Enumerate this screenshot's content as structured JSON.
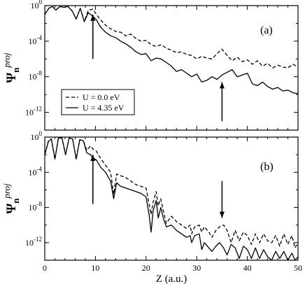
{
  "chart_data": [
    {
      "type": "line",
      "panel_label": "(a)",
      "ylabel": "Ψ",
      "ylabel_sub": "n",
      "ylabel_sup": "proj",
      "xlabel": "",
      "xlim": [
        0,
        50
      ],
      "ylog": true,
      "ylim_log10": [
        -14,
        0
      ],
      "yticks": [
        {
          "v": 0,
          "base": "10",
          "exp": "0"
        },
        {
          "v": -4,
          "base": "10",
          "exp": "-4"
        },
        {
          "v": -8,
          "base": "10",
          "exp": "-8"
        },
        {
          "v": -12,
          "base": "10",
          "exp": "-12"
        }
      ],
      "xticks": [
        0,
        10,
        20,
        30,
        40,
        50
      ],
      "xtick_labels_shown": false,
      "grid": false,
      "legend_position": "lower-left",
      "series": [
        {
          "name": "U = 0.0 eV",
          "style": "dashed",
          "x": [
            0,
            0.8,
            1.5,
            2.2,
            3,
            3.8,
            4.6,
            5.4,
            6.2,
            7.0,
            7.8,
            8.6,
            9.5,
            10.2,
            11,
            12,
            13,
            14,
            15,
            16,
            17,
            18,
            19,
            20,
            21,
            22,
            23,
            24,
            25,
            26,
            27,
            28,
            29,
            30,
            31,
            32,
            33,
            34,
            35,
            36,
            37,
            38,
            39,
            40,
            41,
            42,
            43,
            44,
            45,
            46,
            47,
            48,
            49,
            50
          ],
          "log10": [
            -1.0,
            -0.3,
            -0.1,
            -0.5,
            -0.1,
            -0.2,
            -0.1,
            -0.6,
            -1.5,
            -0.3,
            -1.8,
            -0.5,
            -0.4,
            -1.0,
            -1.6,
            -2.2,
            -2.6,
            -2.9,
            -3.0,
            -3.4,
            -3.2,
            -3.7,
            -4.0,
            -3.9,
            -4.4,
            -4.6,
            -4.4,
            -4.8,
            -5.0,
            -5.3,
            -5.2,
            -5.5,
            -5.6,
            -6.0,
            -5.7,
            -5.9,
            -6.0,
            -5.4,
            -4.9,
            -5.6,
            -6.2,
            -5.8,
            -6.3,
            -6.1,
            -6.6,
            -6.2,
            -6.8,
            -6.5,
            -7.0,
            -6.7,
            -6.9,
            -7.0,
            -6.6,
            -6.9
          ]
        },
        {
          "name": "U = 4.35 eV",
          "style": "solid",
          "x": [
            0,
            0.8,
            1.5,
            2.2,
            3,
            3.8,
            4.6,
            5.4,
            6.2,
            7.0,
            7.8,
            8.6,
            9.5,
            10.2,
            11,
            12,
            13,
            14,
            15,
            16,
            17,
            18,
            19,
            20,
            21,
            22,
            23,
            24,
            25,
            26,
            27,
            28,
            29,
            30,
            31,
            32,
            33,
            34,
            35,
            36,
            37,
            38,
            39,
            40,
            41,
            42,
            43,
            44,
            45,
            46,
            47,
            48,
            49,
            50
          ],
          "log10": [
            -1.0,
            -0.3,
            -0.1,
            -0.5,
            -0.1,
            -0.2,
            -0.1,
            -0.6,
            -1.5,
            -0.3,
            -1.8,
            -0.8,
            -1.2,
            -1.6,
            -2.4,
            -3.0,
            -3.4,
            -3.6,
            -4.0,
            -4.3,
            -4.7,
            -5.2,
            -5.5,
            -5.4,
            -6.2,
            -5.9,
            -6.0,
            -6.4,
            -6.8,
            -7.4,
            -7.2,
            -7.6,
            -8.0,
            -7.7,
            -8.6,
            -8.4,
            -8.0,
            -8.3,
            -7.8,
            -7.5,
            -7.2,
            -8.0,
            -7.8,
            -7.6,
            -8.8,
            -9.0,
            -8.6,
            -9.1,
            -9.4,
            -9.2,
            -9.6,
            -9.5,
            -9.8,
            -9.9
          ]
        }
      ],
      "annotations": [
        {
          "type": "arrow-up",
          "x": 9.5,
          "tip_log10": -1.0,
          "tail_log10": -6.0
        },
        {
          "type": "arrow-up",
          "x": 35,
          "tip_log10": -8.6,
          "tail_log10": -13.0
        }
      ]
    },
    {
      "type": "line",
      "panel_label": "(b)",
      "ylabel": "Ψ",
      "ylabel_sub": "n",
      "ylabel_sup": "proj",
      "xlabel": "Z (a.u.)",
      "xlim": [
        0,
        50
      ],
      "ylog": true,
      "ylim_log10": [
        -14,
        0
      ],
      "yticks": [
        {
          "v": 0,
          "base": "10",
          "exp": "0"
        },
        {
          "v": -4,
          "base": "10",
          "exp": "-4"
        },
        {
          "v": -8,
          "base": "10",
          "exp": "-8"
        },
        {
          "v": -12,
          "base": "10",
          "exp": "-12"
        }
      ],
      "xticks": [
        0,
        10,
        20,
        30,
        40,
        50
      ],
      "xtick_labels_shown": true,
      "grid": false,
      "series": [
        {
          "name": "U = 0.0 eV",
          "style": "dashed",
          "x": [
            0,
            0.7,
            1.3,
            2.0,
            2.7,
            3.4,
            4.1,
            4.8,
            5.5,
            6.2,
            6.9,
            7.6,
            8.3,
            9.0,
            9.6,
            10.2,
            11,
            12,
            13,
            13.6,
            14.2,
            15,
            16,
            17,
            18,
            19,
            20,
            20.6,
            21,
            21.4,
            22,
            22.4,
            22.9,
            23.5,
            24,
            25,
            26,
            27,
            28,
            28.7,
            29,
            29.6,
            30.5,
            31,
            31.5,
            32.4,
            33,
            33.8,
            34.5,
            35.3,
            36,
            36.8,
            37.6,
            38.4,
            39.2,
            40,
            40.8,
            41.6,
            42.4,
            43.2,
            44,
            44.8,
            45.6,
            46.4,
            47.2,
            48,
            48.8,
            49.4,
            50
          ],
          "log10": [
            -2.0,
            -0.5,
            -0.2,
            -2.5,
            -0.1,
            -0.1,
            -2.0,
            -0.1,
            -0.2,
            -2.5,
            -0.3,
            -0.4,
            -1.5,
            -1.0,
            -1.4,
            -1.6,
            -2.4,
            -3.2,
            -4.0,
            -6.5,
            -4.2,
            -4.4,
            -4.6,
            -5.0,
            -5.4,
            -5.6,
            -5.8,
            -7.6,
            -8.8,
            -7.4,
            -6.2,
            -7.8,
            -7.0,
            -8.6,
            -9.8,
            -9.0,
            -9.6,
            -10.0,
            -10.4,
            -10.0,
            -11.0,
            -10.2,
            -10.0,
            -10.8,
            -10.2,
            -10.8,
            -11.4,
            -10.6,
            -10.2,
            -10.0,
            -10.6,
            -12.0,
            -10.6,
            -11.8,
            -10.8,
            -11.2,
            -12.2,
            -11.0,
            -12.0,
            -11.0,
            -11.8,
            -12.0,
            -11.2,
            -12.4,
            -11.0,
            -12.2,
            -11.2,
            -12.6,
            -12.0
          ]
        },
        {
          "name": "U = 4.35 eV",
          "style": "solid",
          "x": [
            0,
            0.7,
            1.3,
            2.0,
            2.7,
            3.4,
            4.1,
            4.8,
            5.5,
            6.2,
            6.9,
            7.6,
            8.3,
            9.0,
            9.6,
            10.2,
            11,
            12,
            13,
            13.6,
            14.2,
            15,
            16,
            17,
            18,
            19,
            20,
            20.6,
            21,
            21.4,
            22,
            22.4,
            22.9,
            23.5,
            24,
            25,
            26,
            27,
            28,
            28.7,
            29,
            29.6,
            30.5,
            31,
            31.5,
            32.4,
            33,
            33.8,
            34.5,
            35.3,
            36,
            36.8,
            37.6,
            38.4,
            39.2,
            40,
            40.8,
            41.6,
            42.4,
            43.2,
            44,
            44.8,
            45.6,
            46.4,
            47.2,
            48,
            48.8,
            49.4,
            50
          ],
          "log10": [
            -2.0,
            -0.5,
            -0.2,
            -2.5,
            -0.1,
            -0.1,
            -2.0,
            -0.1,
            -0.2,
            -2.5,
            -0.3,
            -0.4,
            -1.8,
            -2.0,
            -2.4,
            -2.6,
            -3.4,
            -4.0,
            -5.0,
            -7.0,
            -5.2,
            -5.6,
            -5.8,
            -6.0,
            -6.2,
            -6.4,
            -6.8,
            -8.8,
            -10.8,
            -8.4,
            -7.2,
            -9.2,
            -8.0,
            -9.4,
            -10.2,
            -10.0,
            -10.6,
            -11.0,
            -11.4,
            -11.2,
            -12.0,
            -11.2,
            -11.0,
            -12.8,
            -12.0,
            -12.6,
            -13.0,
            -12.4,
            -12.0,
            -12.6,
            -13.4,
            -12.2,
            -12.6,
            -13.8,
            -12.4,
            -12.8,
            -13.8,
            -12.6,
            -13.8,
            -12.8,
            -13.6,
            -14.0,
            -13.0,
            -13.8,
            -13.0,
            -14.0,
            -13.2,
            -14.0,
            -13.6
          ]
        }
      ],
      "annotations": [
        {
          "type": "arrow-up",
          "x": 9.5,
          "tip_log10": -2.0,
          "tail_log10": -7.6
        },
        {
          "type": "arrow-down",
          "x": 35,
          "tip_log10": -9.2,
          "tail_log10": -5.0
        }
      ]
    }
  ]
}
